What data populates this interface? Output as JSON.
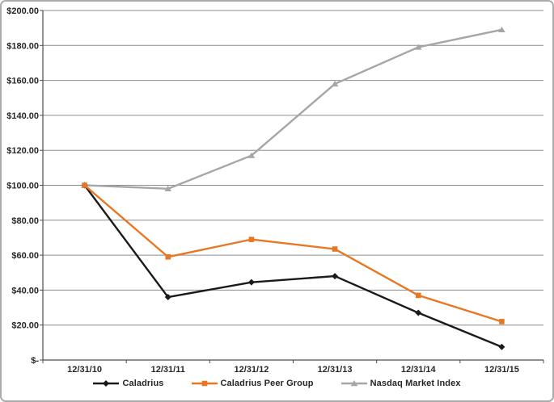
{
  "chart_data": {
    "type": "line",
    "title": "",
    "xlabel": "",
    "ylabel": "",
    "categories": [
      "12/31/10",
      "12/31/11",
      "12/31/12",
      "12/31/13",
      "12/31/14",
      "12/31/15"
    ],
    "series": [
      {
        "name": "Caladrius",
        "color": "#1a1a1a",
        "marker": "diamond",
        "values": [
          100,
          36,
          44.5,
          48,
          27,
          7.5
        ]
      },
      {
        "name": "Caladrius Peer Group",
        "color": "#e87724",
        "marker": "square",
        "values": [
          100,
          59,
          69,
          63.5,
          37,
          22
        ]
      },
      {
        "name": "Nasdaq Market Index",
        "color": "#a6a6a6",
        "marker": "triangle",
        "values": [
          100,
          98,
          117,
          158,
          179,
          189
        ]
      }
    ],
    "ylim": [
      0,
      200
    ],
    "y_tick_step": 20,
    "y_tick_labels": [
      "$-",
      "$20.00",
      "$40.00",
      "$60.00",
      "$80.00",
      "$100.00",
      "$120.00",
      "$140.00",
      "$160.00",
      "$180.00",
      "$200.00"
    ],
    "grid": true,
    "legend_position": "bottom"
  },
  "style": {
    "gridline_color": "#8c8c8c",
    "axis_color": "#4d4d4d",
    "label_color": "#262626",
    "frame_border_color": "#ababab",
    "background": "#ffffff"
  }
}
